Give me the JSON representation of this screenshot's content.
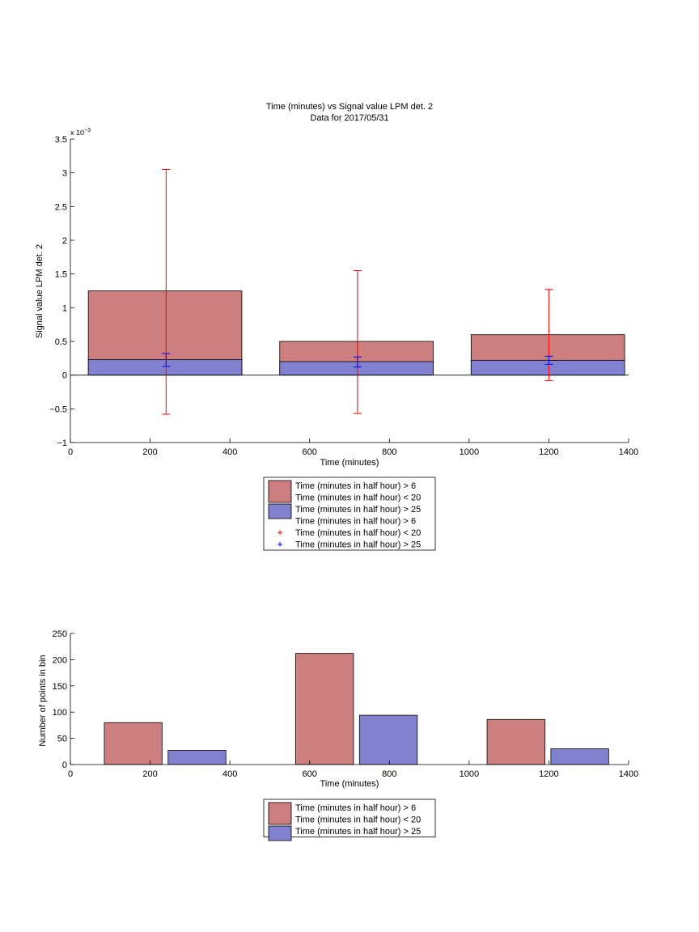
{
  "colors": {
    "red_fill": "#cc7f7e",
    "blue_fill": "#8181d0",
    "errorbar_red": "#ff0000",
    "errorbar_blue": "#0000ff",
    "axis": "#000000"
  },
  "chart_data": [
    {
      "type": "bar",
      "title": "Time (minutes) vs Signal value LPM det. 2",
      "subtitle": "Data for 2017/05/31",
      "xlabel": "Time (minutes)",
      "ylabel": "Signal value LPM det. 2",
      "multiplier_label": "x 10",
      "multiplier_exponent": "−3",
      "xlim": [
        0,
        1400
      ],
      "ylim": [
        -0.001,
        0.0035
      ],
      "x_ticks": [
        0,
        200,
        400,
        600,
        800,
        1000,
        1200,
        1400
      ],
      "x_tick_labels": [
        "0",
        "200",
        "400",
        "600",
        "800",
        "1000",
        "1200",
        "1400"
      ],
      "y_ticks": [
        -0.001,
        -0.0005,
        0,
        0.0005,
        0.001,
        0.0015,
        0.002,
        0.0025,
        0.003,
        0.0035
      ],
      "y_tick_labels": [
        "−1",
        "−0.5",
        "0",
        "0.5",
        "1",
        "1.5",
        "2",
        "2.5",
        "3",
        "3.5"
      ],
      "grid": false,
      "legend_position": "below",
      "bars": [
        {
          "series": 0,
          "x_start": 45,
          "x_end": 430,
          "value": 0.00125
        },
        {
          "series": 1,
          "x_start": 45,
          "x_end": 430,
          "value": 0.00023
        },
        {
          "series": 0,
          "x_start": 525,
          "x_end": 910,
          "value": 0.0005
        },
        {
          "series": 1,
          "x_start": 525,
          "x_end": 910,
          "value": 0.0002
        },
        {
          "series": 0,
          "x_start": 1005,
          "x_end": 1390,
          "value": 0.0006
        },
        {
          "series": 1,
          "x_start": 1005,
          "x_end": 1390,
          "value": 0.00022
        }
      ],
      "errorbars": [
        {
          "series": 0,
          "x": 240,
          "low": -0.00058,
          "high": 0.00305
        },
        {
          "series": 1,
          "x": 240,
          "low": 0.00013,
          "high": 0.00032
        },
        {
          "series": 0,
          "x": 720,
          "low": -0.00057,
          "high": 0.00155
        },
        {
          "series": 1,
          "x": 720,
          "low": 0.00012,
          "high": 0.00027
        },
        {
          "series": 0,
          "x": 1200,
          "low": -8e-05,
          "high": 0.00127
        },
        {
          "series": 1,
          "x": 1200,
          "low": 0.00016,
          "high": 0.00028
        }
      ],
      "legend": [
        {
          "kind": "patch",
          "color": "#cc7f7e",
          "lines": [
            "Time (minutes in half hour) > 6",
            "Time (minutes in half hour) < 20"
          ]
        },
        {
          "kind": "patch",
          "color": "#8181d0",
          "lines": [
            "Time (minutes in half hour) > 25"
          ]
        },
        {
          "kind": "none",
          "lines": [
            "Time (minutes in half hour) > 6"
          ]
        },
        {
          "kind": "marker",
          "color": "#ff0000",
          "lines": [
            "Time (minutes in half hour) < 20"
          ]
        },
        {
          "kind": "marker",
          "color": "#0000ff",
          "lines": [
            "Time (minutes in half hour) > 25"
          ]
        }
      ]
    },
    {
      "type": "bar",
      "xlabel": "Time (minutes)",
      "ylabel": "Number of points in bin",
      "xlim": [
        0,
        1400
      ],
      "ylim": [
        0,
        250
      ],
      "x_ticks": [
        0,
        200,
        400,
        600,
        800,
        1000,
        1200,
        1400
      ],
      "x_tick_labels": [
        "0",
        "200",
        "400",
        "600",
        "800",
        "1000",
        "1200",
        "1400"
      ],
      "y_ticks": [
        0,
        50,
        100,
        150,
        200,
        250
      ],
      "y_tick_labels": [
        "0",
        "50",
        "100",
        "150",
        "200",
        "250"
      ],
      "grid": false,
      "legend_position": "below",
      "bars": [
        {
          "series": 0,
          "x_start": 85,
          "x_end": 230,
          "value": 80
        },
        {
          "series": 1,
          "x_start": 245,
          "x_end": 390,
          "value": 27
        },
        {
          "series": 0,
          "x_start": 565,
          "x_end": 710,
          "value": 212
        },
        {
          "series": 1,
          "x_start": 725,
          "x_end": 870,
          "value": 94
        },
        {
          "series": 0,
          "x_start": 1045,
          "x_end": 1190,
          "value": 86
        },
        {
          "series": 1,
          "x_start": 1205,
          "x_end": 1350,
          "value": 30
        }
      ],
      "legend": [
        {
          "kind": "patch",
          "color": "#cc7f7e",
          "lines": [
            "Time (minutes in half hour) > 6",
            "Time (minutes in half hour) < 20"
          ]
        },
        {
          "kind": "patch",
          "color": "#8181d0",
          "lines": [
            "Time (minutes in half hour) > 25"
          ]
        }
      ]
    }
  ]
}
